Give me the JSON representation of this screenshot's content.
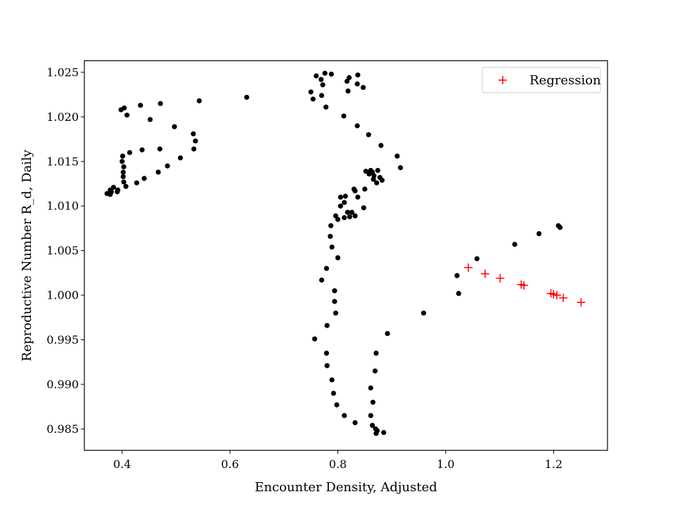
{
  "chart_data": {
    "type": "scatter",
    "title": "",
    "xlabel": "Encounter Density, Adjusted",
    "ylabel": "Reproductive Number R_d, Daily",
    "xlim": [
      0.33,
      1.3
    ],
    "ylim": [
      0.9826,
      1.0263
    ],
    "xticks": [
      0.4,
      0.6,
      0.8,
      1.0,
      1.2
    ],
    "xtick_labels": [
      "0.4",
      "0.6",
      "0.8",
      "1.0",
      "1.2"
    ],
    "yticks": [
      0.985,
      0.99,
      0.995,
      1.0,
      1.005,
      1.01,
      1.015,
      1.02,
      1.025
    ],
    "ytick_labels": [
      "0.985",
      "0.990",
      "0.995",
      "1.000",
      "1.005",
      "1.010",
      "1.015",
      "1.020",
      "1.025"
    ],
    "grid": false,
    "legend": {
      "position": "top-right",
      "entries": [
        "Regression"
      ]
    },
    "colors": {
      "data": "#000000",
      "regression": "#ff0000"
    },
    "series": [
      {
        "marker": "dot",
        "color": "#000000",
        "points": [
          [
            0.372,
            1.0114
          ],
          [
            0.378,
            1.0113
          ],
          [
            0.378,
            1.0118
          ],
          [
            0.38,
            1.0116
          ],
          [
            0.384,
            1.0121
          ],
          [
            0.392,
            1.0118
          ],
          [
            0.391,
            1.0116
          ],
          [
            0.398,
            1.0208
          ],
          [
            0.404,
            1.021
          ],
          [
            0.409,
            1.0202
          ],
          [
            0.401,
            1.0156
          ],
          [
            0.4,
            1.015
          ],
          [
            0.403,
            1.0144
          ],
          [
            0.402,
            1.0138
          ],
          [
            0.402,
            1.0133
          ],
          [
            0.403,
            1.0127
          ],
          [
            0.407,
            1.0122
          ],
          [
            0.414,
            1.016
          ],
          [
            0.427,
            1.0126
          ],
          [
            0.434,
            1.0213
          ],
          [
            0.437,
            1.0163
          ],
          [
            0.441,
            1.0131
          ],
          [
            0.452,
            1.0197
          ],
          [
            0.467,
            1.0138
          ],
          [
            0.47,
            1.0164
          ],
          [
            0.471,
            1.0215
          ],
          [
            0.484,
            1.0145
          ],
          [
            0.497,
            1.0189
          ],
          [
            0.508,
            1.0154
          ],
          [
            0.532,
            1.0181
          ],
          [
            0.533,
            1.0164
          ],
          [
            0.536,
            1.0173
          ],
          [
            0.543,
            1.0218
          ],
          [
            0.631,
            1.0222
          ],
          [
            0.75,
            1.0228
          ],
          [
            0.754,
            1.022
          ],
          [
            0.76,
            1.0246
          ],
          [
            0.769,
            1.0242
          ],
          [
            0.772,
            1.0236
          ],
          [
            0.77,
            1.0224
          ],
          [
            0.776,
            1.0249
          ],
          [
            0.778,
            1.0211
          ],
          [
            0.788,
            1.0248
          ],
          [
            0.811,
            1.0201
          ],
          [
            0.817,
            1.024
          ],
          [
            0.821,
            1.0244
          ],
          [
            0.819,
            1.0229
          ],
          [
            0.836,
            1.0237
          ],
          [
            0.837,
            1.0247
          ],
          [
            0.847,
            1.0233
          ],
          [
            0.836,
            1.019
          ],
          [
            0.857,
            1.018
          ],
          [
            0.88,
            1.0168
          ],
          [
            0.91,
            1.0156
          ],
          [
            0.916,
            1.0143
          ],
          [
            0.852,
            1.0139
          ],
          [
            0.861,
            1.014
          ],
          [
            0.864,
            1.0138
          ],
          [
            0.858,
            1.0136
          ],
          [
            0.867,
            1.0134
          ],
          [
            0.874,
            1.014
          ],
          [
            0.866,
            1.013
          ],
          [
            0.878,
            1.0132
          ],
          [
            0.872,
            1.0126
          ],
          [
            0.882,
            1.0129
          ],
          [
            0.85,
            1.0119
          ],
          [
            0.83,
            1.0119
          ],
          [
            0.832,
            1.0117
          ],
          [
            0.837,
            1.011
          ],
          [
            0.805,
            1.011
          ],
          [
            0.814,
            1.0111
          ],
          [
            0.812,
            1.0104
          ],
          [
            0.805,
            1.01
          ],
          [
            0.848,
            1.0098
          ],
          [
            0.818,
            1.0093
          ],
          [
            0.826,
            1.0093
          ],
          [
            0.832,
            1.0089
          ],
          [
            0.812,
            1.0087
          ],
          [
            0.796,
            1.0089
          ],
          [
            0.8,
            1.0085
          ],
          [
            0.822,
            1.0088
          ],
          [
            0.787,
            1.0078
          ],
          [
            0.786,
            1.0066
          ],
          [
            0.789,
            1.0054
          ],
          [
            0.8,
            1.0042
          ],
          [
            0.779,
            1.003
          ],
          [
            0.77,
            1.0017
          ],
          [
            0.794,
            1.0005
          ],
          [
            0.794,
            0.9993
          ],
          [
            0.796,
            0.998
          ],
          [
            0.78,
            0.9966
          ],
          [
            0.757,
            0.9951
          ],
          [
            0.779,
            0.9935
          ],
          [
            0.78,
            0.9921
          ],
          [
            0.789,
            0.9905
          ],
          [
            0.792,
            0.989
          ],
          [
            0.798,
            0.9877
          ],
          [
            0.812,
            0.9865
          ],
          [
            0.832,
            0.9857
          ],
          [
            0.892,
            0.9957
          ],
          [
            0.871,
            0.9935
          ],
          [
            0.869,
            0.9915
          ],
          [
            0.861,
            0.9896
          ],
          [
            0.865,
            0.988
          ],
          [
            0.861,
            0.9865
          ],
          [
            0.864,
            0.9854
          ],
          [
            0.87,
            0.985
          ],
          [
            0.873,
            0.9848
          ],
          [
            0.871,
            0.9845
          ],
          [
            0.885,
            0.9846
          ],
          [
            0.959,
            0.998
          ],
          [
            1.021,
            1.0022
          ],
          [
            1.024,
            1.0002
          ],
          [
            1.058,
            1.0041
          ],
          [
            1.128,
            1.0057
          ],
          [
            1.173,
            1.0069
          ],
          [
            1.209,
            1.0078
          ],
          [
            1.212,
            1.0076
          ]
        ]
      },
      {
        "name": "Regression",
        "marker": "plus",
        "color": "#ff0000",
        "points": [
          [
            1.042,
            1.0031
          ],
          [
            1.073,
            1.0024
          ],
          [
            1.101,
            1.0019
          ],
          [
            1.14,
            1.0012
          ],
          [
            1.145,
            1.0011
          ],
          [
            1.195,
            1.0002
          ],
          [
            1.2,
            1.0001
          ],
          [
            1.206,
            1.0
          ],
          [
            1.218,
            0.9997
          ],
          [
            1.251,
            0.9992
          ]
        ]
      }
    ]
  }
}
